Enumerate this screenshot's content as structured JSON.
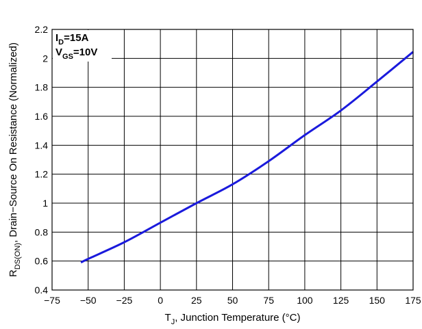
{
  "chart_data": {
    "type": "line",
    "title": "",
    "xlabel": {
      "main": "T",
      "sub": "J",
      "rest": ", Junction Temperature (°C)"
    },
    "ylabel": {
      "main": "R",
      "sub": "DS(ON)",
      "rest": ", Drain−Source On Resistance (Normalized)"
    },
    "xlim": [
      -75,
      175
    ],
    "ylim": [
      0.4,
      2.2
    ],
    "x_ticks": [
      -75,
      -50,
      -25,
      0,
      25,
      50,
      75,
      100,
      125,
      150,
      175
    ],
    "x_tick_labels": [
      "−75",
      "−50",
      "−25",
      "0",
      "25",
      "50",
      "75",
      "100",
      "125",
      "150",
      "175"
    ],
    "y_ticks": [
      0.4,
      0.6,
      0.8,
      1.0,
      1.2,
      1.4,
      1.6,
      1.8,
      2.0,
      2.2
    ],
    "y_tick_labels": [
      "0.4",
      "0.6",
      "0.8",
      "1",
      "1.2",
      "1.4",
      "1.6",
      "1.8",
      "2",
      "2.2"
    ],
    "grid": true,
    "annotations": [
      {
        "main": "I",
        "sub": "D",
        "rest": "=15A"
      },
      {
        "main": "V",
        "sub": "GS",
        "rest": "=10V"
      }
    ],
    "series": [
      {
        "color": "#1a1adc",
        "x": [
          -55,
          -50,
          -25,
          0,
          25,
          50,
          75,
          100,
          125,
          150,
          175
        ],
        "y": [
          0.59,
          0.615,
          0.73,
          0.865,
          1.0,
          1.13,
          1.29,
          1.47,
          1.64,
          1.84,
          2.045
        ]
      }
    ]
  }
}
